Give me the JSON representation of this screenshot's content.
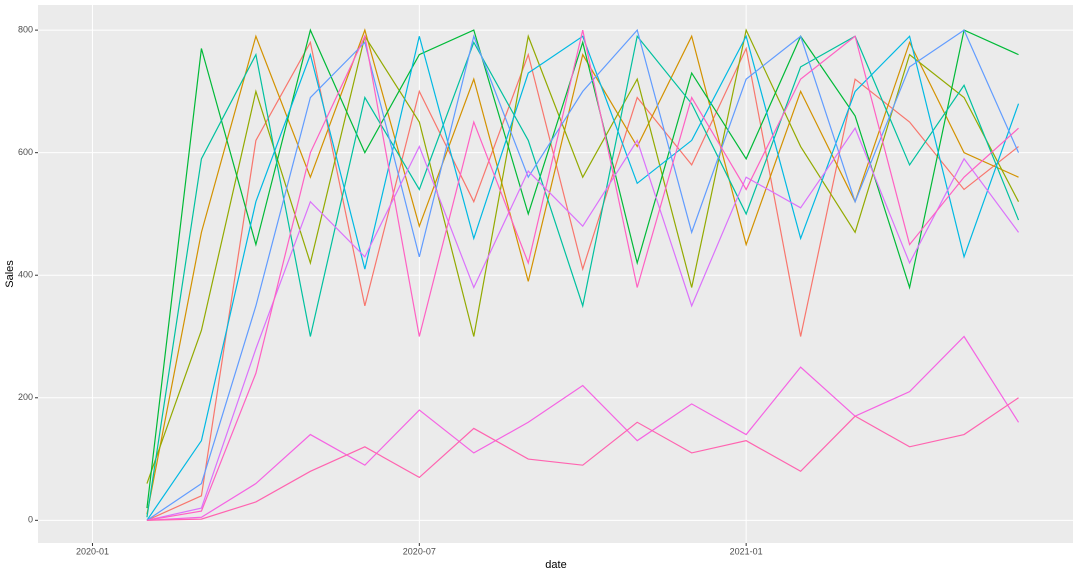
{
  "chart_data": {
    "type": "line",
    "x_label": "date",
    "y_label": "Sales",
    "x": [
      "2020-02",
      "2020-03",
      "2020-04",
      "2020-05",
      "2020-06",
      "2020-07",
      "2020-08",
      "2020-09",
      "2020-10",
      "2020-11",
      "2020-12",
      "2021-01",
      "2021-02",
      "2021-03",
      "2021-04",
      "2021-05",
      "2021-06"
    ],
    "xlim": [
      "2019-12",
      "2021-07"
    ],
    "xticks": [
      "2020-01",
      "2020-07",
      "2021-01"
    ],
    "ylim": [
      -37,
      841
    ],
    "yticks": [
      0,
      200,
      400,
      600,
      800
    ],
    "grid": true,
    "series": [
      {
        "color": "#F8766D",
        "values": [
          0,
          40,
          620,
          780,
          350,
          700,
          520,
          760,
          410,
          690,
          580,
          770,
          300,
          720,
          650,
          540,
          610
        ]
      },
      {
        "color": "#D39200",
        "values": [
          10,
          470,
          790,
          560,
          800,
          480,
          720,
          390,
          760,
          610,
          790,
          450,
          700,
          520,
          780,
          600,
          560
        ]
      },
      {
        "color": "#93AA00",
        "values": [
          60,
          310,
          700,
          420,
          790,
          650,
          300,
          790,
          560,
          720,
          380,
          800,
          610,
          470,
          760,
          690,
          520
        ]
      },
      {
        "color": "#00BA38",
        "values": [
          20,
          770,
          450,
          800,
          600,
          760,
          800,
          500,
          780,
          420,
          730,
          590,
          790,
          660,
          380,
          800,
          760
        ]
      },
      {
        "color": "#00C19F",
        "values": [
          5,
          590,
          760,
          300,
          690,
          540,
          780,
          620,
          350,
          790,
          680,
          500,
          740,
          790,
          580,
          710,
          490
        ]
      },
      {
        "color": "#00B9E3",
        "values": [
          0,
          130,
          520,
          760,
          410,
          790,
          460,
          730,
          790,
          550,
          620,
          790,
          460,
          700,
          790,
          430,
          680
        ]
      },
      {
        "color": "#619CFF",
        "values": [
          0,
          60,
          350,
          690,
          780,
          430,
          790,
          560,
          700,
          800,
          470,
          720,
          790,
          520,
          740,
          800,
          600
        ]
      },
      {
        "color": "#DB72FB",
        "values": [
          0,
          20,
          280,
          520,
          430,
          610,
          380,
          570,
          480,
          620,
          350,
          560,
          510,
          640,
          420,
          590,
          470
        ]
      },
      {
        "color": "#FF61C3",
        "values": [
          0,
          15,
          240,
          600,
          790,
          300,
          650,
          420,
          800,
          380,
          690,
          540,
          720,
          790,
          450,
          560,
          640
        ]
      },
      {
        "color": "#F564E3",
        "values": [
          0,
          5,
          60,
          140,
          90,
          180,
          110,
          160,
          220,
          130,
          190,
          140,
          250,
          170,
          210,
          300,
          160
        ]
      },
      {
        "color": "#FF64B0",
        "values": [
          0,
          2,
          30,
          80,
          120,
          70,
          150,
          100,
          90,
          160,
          110,
          130,
          80,
          170,
          120,
          140,
          200
        ]
      }
    ]
  }
}
